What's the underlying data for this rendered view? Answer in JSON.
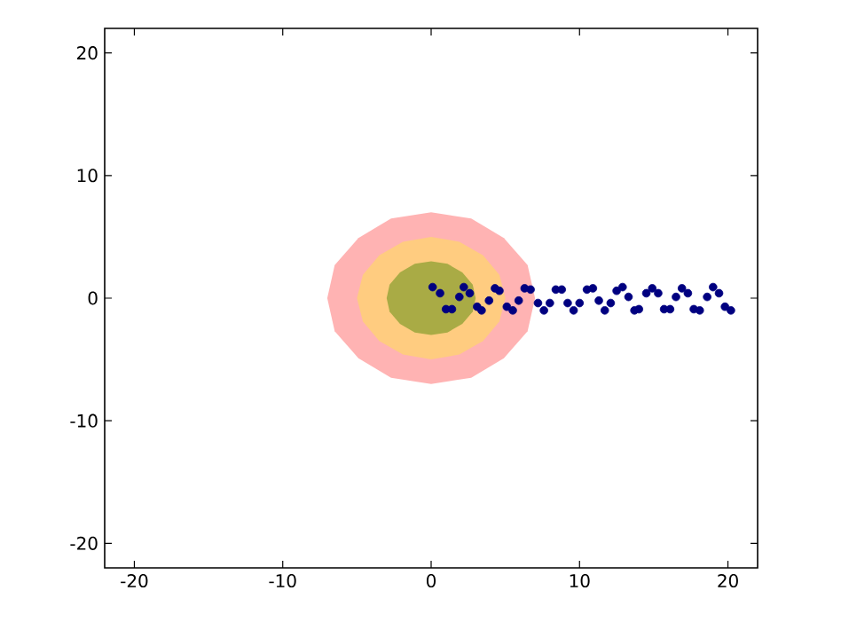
{
  "chart_data": {
    "type": "scatter",
    "xlim": [
      -22,
      22
    ],
    "ylim": [
      -22,
      22
    ],
    "xticks": [
      -20,
      -10,
      0,
      10,
      20
    ],
    "yticks": [
      -20,
      -10,
      0,
      10,
      20
    ],
    "series": [
      {
        "type": "area",
        "color": "#ffb3b3",
        "x": [
          7,
          6.5,
          4.9,
          2.7,
          0,
          -2.7,
          -4.9,
          -6.5,
          -7,
          -6.5,
          -4.9,
          -2.7,
          0,
          2.7,
          4.9,
          6.5
        ],
        "values": [
          0,
          2.7,
          4.9,
          6.5,
          7,
          6.5,
          4.9,
          2.7,
          0,
          -2.7,
          -4.9,
          -6.5,
          -7,
          -6.5,
          -4.9,
          -2.7
        ]
      },
      {
        "type": "area",
        "color": "#ffcc80",
        "x": [
          5,
          4.6,
          3.5,
          1.9,
          0,
          -1.9,
          -3.5,
          -4.6,
          -5,
          -4.6,
          -3.5,
          -1.9,
          0,
          1.9,
          3.5,
          4.6
        ],
        "values": [
          0,
          1.9,
          3.5,
          4.6,
          5,
          4.6,
          3.5,
          1.9,
          0,
          -1.9,
          -3.5,
          -4.6,
          -5,
          -4.6,
          -3.5,
          -1.9
        ]
      },
      {
        "type": "area",
        "color": "#a9ab45",
        "x": [
          3,
          2.8,
          2.1,
          1.1,
          0,
          -1.1,
          -2.1,
          -2.8,
          -3,
          -2.8,
          -2.1,
          -1.1,
          0,
          1.1,
          2.1,
          2.8
        ],
        "values": [
          0,
          1.1,
          2.1,
          2.8,
          3,
          2.8,
          2.1,
          1.1,
          0,
          -1.1,
          -2.1,
          -2.8,
          -3,
          -2.8,
          -2.1,
          -1.1
        ]
      },
      {
        "marker": "circle",
        "color": "#000080",
        "x": [
          0.1,
          0.6,
          1.0,
          1.4,
          1.9,
          2.2,
          2.6,
          3.1,
          3.4,
          3.9,
          4.3,
          4.6,
          5.1,
          5.5,
          5.9,
          6.3,
          6.7,
          7.2,
          7.6,
          8.0,
          8.4,
          8.8,
          9.2,
          9.6,
          10.0,
          10.5,
          10.9,
          11.3,
          11.7,
          12.1,
          12.5,
          12.9,
          13.3,
          13.7,
          14.0,
          14.5,
          14.9,
          15.3,
          15.7,
          16.1,
          16.5,
          16.9,
          17.3,
          17.7,
          18.1,
          18.6,
          19.0,
          19.4,
          19.8,
          20.2
        ],
        "values": [
          0.9,
          0.4,
          -0.9,
          -0.9,
          0.1,
          0.9,
          0.4,
          -0.7,
          -1.0,
          -0.2,
          0.8,
          0.6,
          -0.7,
          -1.0,
          -0.2,
          0.8,
          0.7,
          -0.4,
          -1.0,
          -0.4,
          0.7,
          0.7,
          -0.4,
          -1.0,
          -0.4,
          0.7,
          0.8,
          -0.2,
          -1.0,
          -0.4,
          0.6,
          0.9,
          0.1,
          -1.0,
          -0.9,
          0.4,
          0.8,
          0.4,
          -0.9,
          -0.9,
          0.1,
          0.8,
          0.4,
          -0.9,
          -1.0,
          0.1,
          0.9,
          0.4,
          -0.7,
          -1.0
        ]
      }
    ]
  }
}
